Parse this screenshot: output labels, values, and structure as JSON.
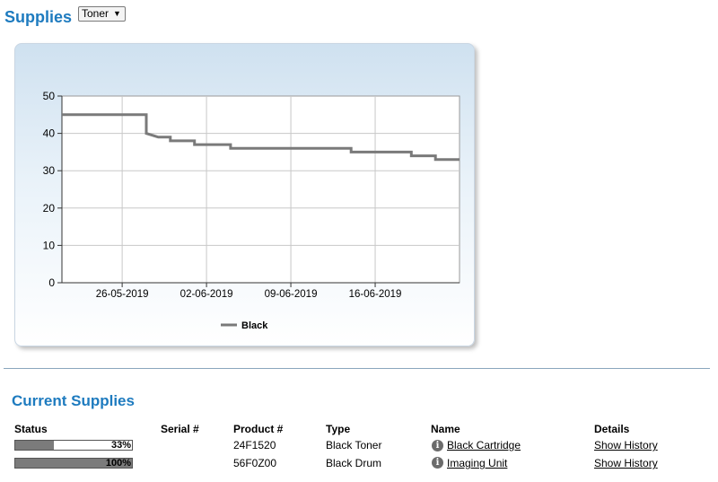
{
  "header": {
    "title": "Supplies"
  },
  "supply_select": {
    "value": "Toner",
    "arrow": "▼"
  },
  "chart_data": {
    "type": "line",
    "title": "",
    "xlabel": "",
    "ylabel": "",
    "ylim": [
      0,
      50
    ],
    "yticks": [
      0,
      10,
      20,
      30,
      40,
      50
    ],
    "xlim": [
      "2019-05-21",
      "2019-06-23"
    ],
    "xticks": [
      "26-05-2019",
      "02-06-2019",
      "09-06-2019",
      "16-06-2019"
    ],
    "grid": true,
    "legend": "bottom-center",
    "series": [
      {
        "name": "Black",
        "color": "#7a7a7a",
        "points": [
          [
            "2019-05-21",
            45
          ],
          [
            "2019-05-28",
            45
          ],
          [
            "2019-05-28",
            40
          ],
          [
            "2019-05-29",
            39
          ],
          [
            "2019-05-30",
            39
          ],
          [
            "2019-05-30",
            38
          ],
          [
            "2019-06-01",
            38
          ],
          [
            "2019-06-01",
            37
          ],
          [
            "2019-06-04",
            37
          ],
          [
            "2019-06-04",
            36
          ],
          [
            "2019-06-14",
            36
          ],
          [
            "2019-06-14",
            35
          ],
          [
            "2019-06-19",
            35
          ],
          [
            "2019-06-19",
            34
          ],
          [
            "2019-06-21",
            34
          ],
          [
            "2019-06-21",
            33
          ],
          [
            "2019-06-23",
            33
          ]
        ]
      }
    ]
  },
  "current": {
    "title": "Current Supplies",
    "headers": {
      "status": "Status",
      "serial": "Serial #",
      "product": "Product #",
      "type": "Type",
      "name": "Name",
      "details": "Details"
    },
    "rows": [
      {
        "percent": 33,
        "percent_label": "33%",
        "serial": "",
        "product": "24F1520",
        "type": "Black Toner",
        "name": "Black Cartridge",
        "details": "Show History",
        "icon": "info-icon"
      },
      {
        "percent": 100,
        "percent_label": "100%",
        "serial": "",
        "product": "56F0Z00",
        "type": "Black Drum",
        "name": "Imaging Unit",
        "details": "Show History",
        "icon": "info-icon"
      }
    ]
  }
}
